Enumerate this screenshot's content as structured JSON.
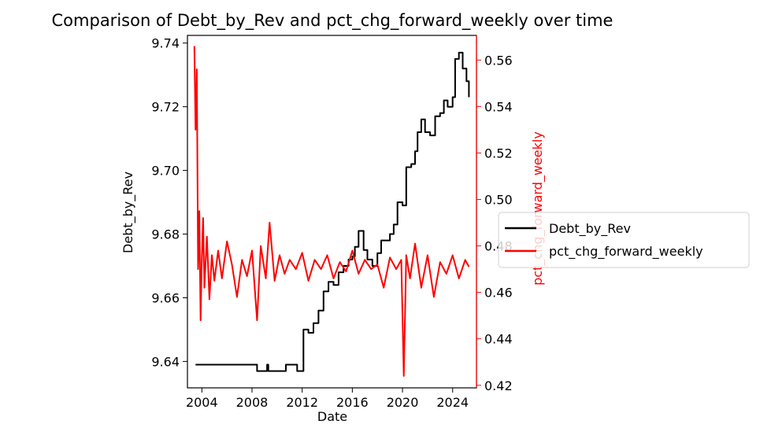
{
  "chart_data": {
    "type": "line",
    "title": "Comparison of Debt_by_Rev and pct_chg_forward_weekly over time",
    "xlabel": "Date",
    "ylabel_left": "Debt_by_Rev",
    "ylabel_right": "pct_chg_forward_weekly",
    "x_ticks": [
      "2004",
      "2008",
      "2012",
      "2016",
      "2020",
      "2024"
    ],
    "x_tick_years": [
      2004,
      2008,
      2012,
      2016,
      2020,
      2024
    ],
    "xlim": [
      2002.85,
      2025.9
    ],
    "y_left_ticks": [
      "9.64",
      "9.66",
      "9.68",
      "9.70",
      "9.72",
      "9.74"
    ],
    "y_left_tick_values": [
      9.64,
      9.66,
      9.68,
      9.7,
      9.72,
      9.74
    ],
    "ylim_left": [
      9.6317,
      9.7424
    ],
    "y_right_ticks": [
      "0.42",
      "0.44",
      "0.46",
      "0.48",
      "0.50",
      "0.52",
      "0.54",
      "0.56"
    ],
    "y_right_tick_values": [
      0.42,
      0.44,
      0.46,
      0.48,
      0.5,
      0.52,
      0.54,
      0.56
    ],
    "ylim_right": [
      0.4189,
      0.5706
    ],
    "grid": false,
    "legend_position": "right, outside",
    "series": [
      {
        "name": "Debt_by_Rev",
        "axis": "left",
        "color": "#000000",
        "x": [
          2003.5,
          2008.0,
          2008.4,
          2008.9,
          2009.2,
          2009.3,
          2009.6,
          2010.7,
          2011.2,
          2011.6,
          2012.0,
          2012.1,
          2012.5,
          2012.9,
          2013.3,
          2013.7,
          2014.1,
          2014.5,
          2014.9,
          2015.3,
          2015.7,
          2016.0,
          2016.2,
          2016.5,
          2016.9,
          2017.2,
          2017.6,
          2018.0,
          2018.3,
          2018.6,
          2019.0,
          2019.3,
          2019.6,
          2020.0,
          2020.3,
          2020.7,
          2021.0,
          2021.2,
          2021.5,
          2021.8,
          2022.2,
          2022.6,
          2023.0,
          2023.3,
          2023.6,
          2024.0,
          2024.2,
          2024.5,
          2024.8,
          2025.1,
          2025.3
        ],
        "y": [
          9.639,
          9.639,
          9.637,
          9.637,
          9.639,
          9.637,
          9.637,
          9.639,
          9.639,
          9.637,
          9.637,
          9.65,
          9.649,
          9.652,
          9.656,
          9.662,
          9.665,
          9.664,
          9.668,
          9.67,
          9.672,
          9.673,
          9.676,
          9.681,
          9.675,
          9.672,
          9.67,
          9.674,
          9.678,
          9.678,
          9.68,
          9.683,
          9.69,
          9.689,
          9.701,
          9.702,
          9.706,
          9.712,
          9.716,
          9.712,
          9.711,
          9.717,
          9.718,
          9.722,
          9.72,
          9.723,
          9.735,
          9.737,
          9.732,
          9.728,
          9.723
        ]
      },
      {
        "name": "pct_chg_forward_weekly",
        "axis": "right",
        "color": "#ff0000",
        "x": [
          2003.4,
          2003.5,
          2003.6,
          2003.7,
          2003.8,
          2003.9,
          2004.0,
          2004.1,
          2004.2,
          2004.4,
          2004.6,
          2004.8,
          2005.0,
          2005.3,
          2005.6,
          2006.0,
          2006.4,
          2006.8,
          2007.2,
          2007.6,
          2008.0,
          2008.4,
          2008.7,
          2009.1,
          2009.4,
          2009.8,
          2010.2,
          2010.6,
          2011.0,
          2011.5,
          2012.0,
          2012.5,
          2013.0,
          2013.5,
          2014.0,
          2014.5,
          2015.0,
          2015.5,
          2016.0,
          2016.5,
          2017.0,
          2017.5,
          2018.0,
          2018.5,
          2019.0,
          2019.5,
          2019.9,
          2020.1,
          2020.3,
          2020.6,
          2021.0,
          2021.5,
          2022.0,
          2022.5,
          2023.0,
          2023.5,
          2024.0,
          2024.5,
          2025.0,
          2025.3
        ],
        "y": [
          0.566,
          0.53,
          0.556,
          0.47,
          0.495,
          0.448,
          0.475,
          0.492,
          0.462,
          0.484,
          0.457,
          0.476,
          0.465,
          0.478,
          0.466,
          0.482,
          0.472,
          0.458,
          0.474,
          0.467,
          0.478,
          0.448,
          0.48,
          0.466,
          0.49,
          0.465,
          0.476,
          0.468,
          0.474,
          0.47,
          0.477,
          0.465,
          0.474,
          0.47,
          0.476,
          0.466,
          0.473,
          0.469,
          0.478,
          0.468,
          0.474,
          0.47,
          0.472,
          0.462,
          0.475,
          0.47,
          0.474,
          0.424,
          0.476,
          0.466,
          0.481,
          0.462,
          0.476,
          0.458,
          0.473,
          0.468,
          0.476,
          0.466,
          0.474,
          0.471
        ]
      }
    ]
  }
}
